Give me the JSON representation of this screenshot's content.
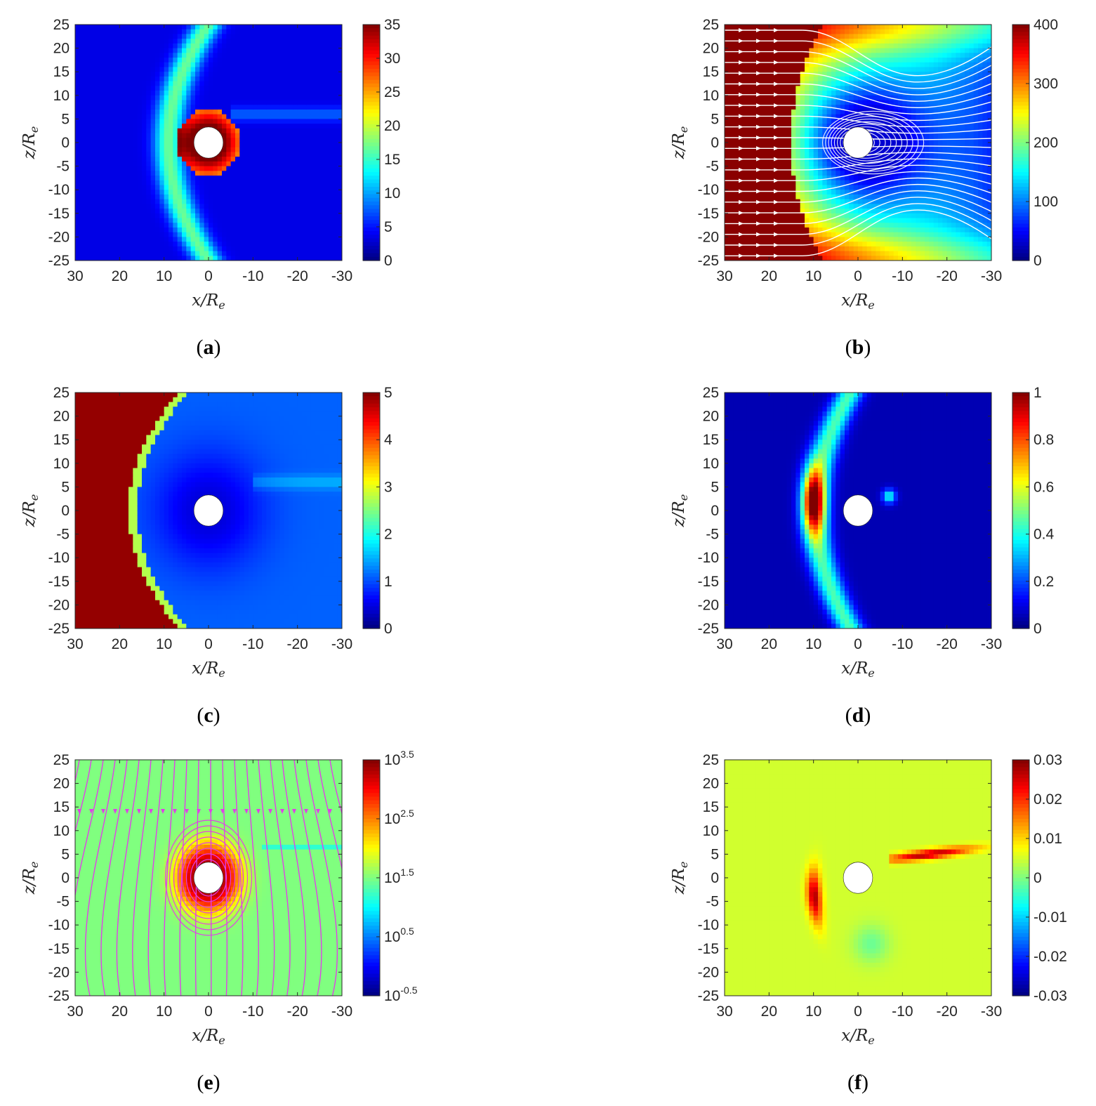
{
  "figure": {
    "panels_count": 6
  },
  "chart_data": [
    {
      "id": "a",
      "type": "heatmap",
      "caption": "a",
      "xlabel": "x/R",
      "xlabel_sub": "e",
      "ylabel": "z/R",
      "ylabel_sub": "e",
      "xlim": [
        30,
        -30
      ],
      "ylim": [
        -25,
        25
      ],
      "xticks": [
        "30",
        "20",
        "10",
        "0",
        "-10",
        "-20",
        "-30"
      ],
      "yticks": [
        "25",
        "20",
        "15",
        "10",
        "5",
        "0",
        "-5",
        "-10",
        "-15",
        "-20",
        "-25"
      ],
      "colorbar": {
        "range": [
          0,
          35
        ],
        "ticks": [
          "35",
          "30",
          "25",
          "20",
          "15",
          "10",
          "5",
          "0"
        ]
      },
      "field": "density_bowshock",
      "streamlines": "none"
    },
    {
      "id": "b",
      "type": "heatmap",
      "caption": "b",
      "xlabel": "x/R",
      "xlabel_sub": "e",
      "ylabel": "z/R",
      "ylabel_sub": "e",
      "xlim": [
        30,
        -30
      ],
      "ylim": [
        -25,
        25
      ],
      "xticks": [
        "30",
        "20",
        "10",
        "0",
        "-10",
        "-20",
        "-30"
      ],
      "yticks": [
        "25",
        "20",
        "15",
        "10",
        "5",
        "0",
        "-5",
        "-10",
        "-15",
        "-20",
        "-25"
      ],
      "colorbar": {
        "range": [
          0,
          400
        ],
        "ticks": [
          "400",
          "300",
          "200",
          "100",
          "0"
        ]
      },
      "field": "velocity",
      "streamlines": "white"
    },
    {
      "id": "c",
      "type": "heatmap",
      "caption": "c",
      "xlabel": "x/R",
      "xlabel_sub": "e",
      "ylabel": "z/R",
      "ylabel_sub": "e",
      "xlim": [
        30,
        -30
      ],
      "ylim": [
        -25,
        25
      ],
      "xticks": [
        "30",
        "20",
        "10",
        "0",
        "-10",
        "-20",
        "-30"
      ],
      "yticks": [
        "25",
        "20",
        "15",
        "10",
        "5",
        "0",
        "-5",
        "-10",
        "-15",
        "-20",
        "-25"
      ],
      "colorbar": {
        "range": [
          0,
          5
        ],
        "ticks": [
          "5",
          "4",
          "3",
          "2",
          "1",
          "0"
        ]
      },
      "field": "mach",
      "streamlines": "none"
    },
    {
      "id": "d",
      "type": "heatmap",
      "caption": "d",
      "xlabel": "x/R",
      "xlabel_sub": "e",
      "ylabel": "z/R",
      "ylabel_sub": "e",
      "xlim": [
        30,
        -30
      ],
      "ylim": [
        -25,
        25
      ],
      "xticks": [
        "30",
        "20",
        "10",
        "0",
        "-10",
        "-20",
        "-30"
      ],
      "yticks": [
        "25",
        "20",
        "15",
        "10",
        "5",
        "0",
        "-5",
        "-10",
        "-15",
        "-20",
        "-25"
      ],
      "colorbar": {
        "range": [
          0,
          1
        ],
        "ticks": [
          "1",
          "0.8",
          "0.6",
          "0.4",
          "0.2",
          "0"
        ]
      },
      "field": "pressure",
      "streamlines": "none"
    },
    {
      "id": "e",
      "type": "heatmap",
      "caption": "e",
      "xlabel": "x/R",
      "xlabel_sub": "e",
      "ylabel": "z/R",
      "ylabel_sub": "e",
      "xlim": [
        30,
        -30
      ],
      "ylim": [
        -25,
        25
      ],
      "xticks": [
        "30",
        "20",
        "10",
        "0",
        "-10",
        "-20",
        "-30"
      ],
      "yticks": [
        "25",
        "20",
        "15",
        "10",
        "5",
        "0",
        "-5",
        "-10",
        "-15",
        "-20",
        "-25"
      ],
      "colorbar": {
        "range": [
          -0.5,
          3.5
        ],
        "scale": "log",
        "ticks": [
          {
            "base": "10",
            "exp": "3.5"
          },
          {
            "base": "10",
            "exp": "2.5"
          },
          {
            "base": "10",
            "exp": "1.5"
          },
          {
            "base": "10",
            "exp": "0.5"
          },
          {
            "base": "10",
            "exp": "-0.5"
          }
        ]
      },
      "field": "magnetic",
      "streamlines": "magenta"
    },
    {
      "id": "f",
      "type": "heatmap",
      "caption": "f",
      "xlabel": "x/R",
      "xlabel_sub": "e",
      "ylabel": "z/R",
      "ylabel_sub": "e",
      "xlim": [
        30,
        -30
      ],
      "ylim": [
        -25,
        25
      ],
      "xticks": [
        "30",
        "20",
        "10",
        "0",
        "-10",
        "-20",
        "-30"
      ],
      "yticks": [
        "25",
        "20",
        "15",
        "10",
        "5",
        "0",
        "-5",
        "-10",
        "-15",
        "-20",
        "-25"
      ],
      "colorbar": {
        "range": [
          -0.03,
          0.03
        ],
        "ticks": [
          "0.03",
          "0.02",
          "0.01",
          "0",
          "-0.01",
          "-0.02",
          "-0.03"
        ]
      },
      "field": "current",
      "streamlines": "none"
    }
  ]
}
